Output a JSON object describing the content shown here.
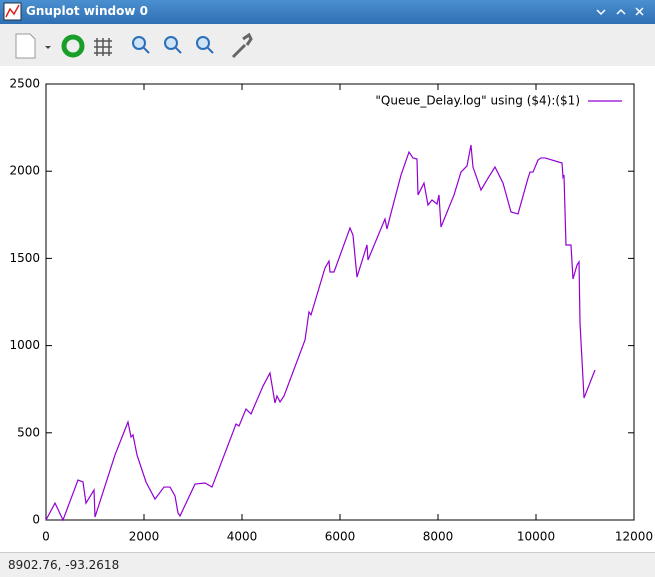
{
  "window": {
    "title": "Gnuplot window 0",
    "status": "8902.76, -93.2618"
  },
  "chart_data": {
    "type": "line",
    "x": [
      0,
      184,
      347,
      653,
      755,
      816,
      980,
      1000,
      1408,
      1673,
      1735,
      1776,
      1857,
      2041,
      2224,
      2408,
      2531,
      2633,
      2694,
      2735,
      3041,
      3245,
      3388,
      3878,
      3939,
      4082,
      4184,
      4429,
      4571,
      4673,
      4714,
      4776,
      4857,
      5286,
      5367,
      5408,
      5694,
      5776,
      5796,
      5878,
      6122,
      6204,
      6265,
      6347,
      6551,
      6571,
      6918,
      6959,
      7041,
      7245,
      7408,
      7490,
      7571,
      7592,
      7714,
      7796,
      7878,
      7980,
      8020,
      8061,
      8327,
      8469,
      8592,
      8673,
      8714,
      8878,
      9020,
      9163,
      9327,
      9490,
      9633,
      9837,
      9878,
      9939,
      10041,
      10102,
      10184,
      10531,
      10551,
      10571,
      10612,
      10714,
      10755,
      10837,
      10878,
      10898,
      10980,
      11204
    ],
    "series": [
      {
        "name": "\"Queue_Delay.log\" using ($4):($1)",
        "color": "#9400d3",
        "values": [
          0,
          97,
          0,
          229,
          218,
          97,
          172,
          17,
          373,
          562,
          476,
          488,
          373,
          218,
          120,
          189,
          189,
          138,
          40,
          23,
          206,
          212,
          189,
          550,
          539,
          636,
          608,
          768,
          843,
          671,
          711,
          677,
          711,
          1032,
          1193,
          1176,
          1445,
          1485,
          1422,
          1422,
          1611,
          1674,
          1634,
          1393,
          1577,
          1491,
          1726,
          1669,
          1760,
          1978,
          2110,
          2076,
          2070,
          1864,
          1932,
          1806,
          1835,
          1812,
          1864,
          1680,
          1864,
          1995,
          2030,
          2150,
          2024,
          1892,
          1960,
          2024,
          1932,
          1766,
          1755,
          1960,
          1995,
          1995,
          2064,
          2076,
          2076,
          2047,
          1966,
          1978,
          1577,
          1577,
          1382,
          1462,
          1480,
          1130,
          700,
          860
        ]
      }
    ],
    "xlim": [
      0,
      12000
    ],
    "xticks": [
      0,
      2000,
      4000,
      6000,
      8000,
      10000,
      12000
    ],
    "ylim": [
      0,
      2500
    ],
    "yticks": [
      0,
      500,
      1000,
      1500,
      2000,
      2500
    ],
    "grid": false,
    "legend": "top-right"
  }
}
